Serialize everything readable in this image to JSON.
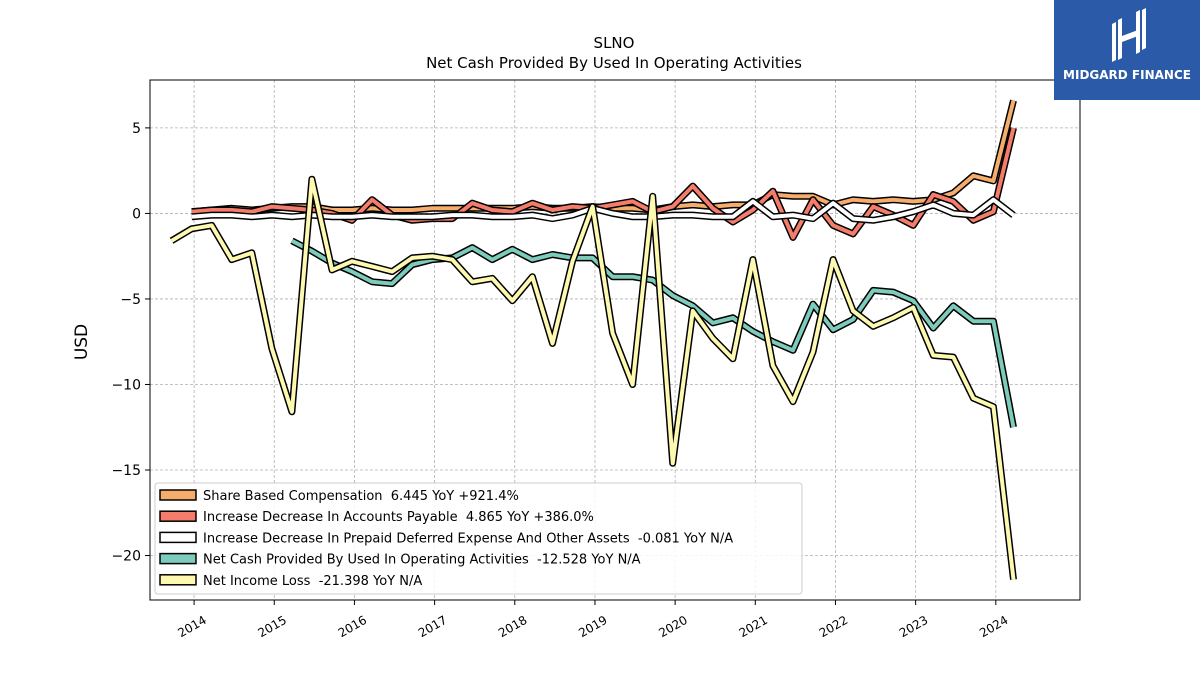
{
  "brand": {
    "name": "MIDGARD FINANCE",
    "bg_color": "#2b5aa8"
  },
  "chart_data": {
    "type": "line",
    "title": "SLNO",
    "subtitle": "Net Cash Provided By Used In Operating Activities",
    "xlabel": "",
    "ylabel": "USD",
    "xlim": [
      2013.45,
      2025.05
    ],
    "ylim": [
      -22.6,
      7.8
    ],
    "xticks": [
      "2014",
      "2015",
      "2016",
      "2017",
      "2018",
      "2019",
      "2020",
      "2021",
      "2022",
      "2023",
      "2024"
    ],
    "yticks": [
      5,
      0,
      -5,
      -10,
      -15,
      -20
    ],
    "ytick_labels": [
      "5",
      "0",
      "−5",
      "−10",
      "−15",
      "−20"
    ],
    "grid": true,
    "legend_position": "lower-left",
    "series": [
      {
        "name": "Share Based Compensation",
        "legend": "Share Based Compensation  6.445 YoY +921.4%",
        "color": "#f6ac6b",
        "points": [
          [
            2013.97,
            0.1
          ],
          [
            2014.22,
            0.2
          ],
          [
            2014.47,
            0.3
          ],
          [
            2014.72,
            0.2
          ],
          [
            2014.97,
            0.3
          ],
          [
            2015.22,
            0.4
          ],
          [
            2015.47,
            0.4
          ],
          [
            2015.72,
            0.2
          ],
          [
            2015.97,
            0.2
          ],
          [
            2016.22,
            0.3
          ],
          [
            2016.47,
            0.2
          ],
          [
            2016.72,
            0.2
          ],
          [
            2016.97,
            0.3
          ],
          [
            2017.22,
            0.3
          ],
          [
            2017.47,
            0.3
          ],
          [
            2017.72,
            0.3
          ],
          [
            2017.97,
            0.3
          ],
          [
            2018.22,
            0.4
          ],
          [
            2018.47,
            0.3
          ],
          [
            2018.72,
            0.3
          ],
          [
            2018.97,
            0.4
          ],
          [
            2019.22,
            0.3
          ],
          [
            2019.47,
            0.3
          ],
          [
            2019.72,
            0.2
          ],
          [
            2019.97,
            0.4
          ],
          [
            2020.22,
            0.5
          ],
          [
            2020.47,
            0.4
          ],
          [
            2020.72,
            0.5
          ],
          [
            2020.97,
            0.5
          ],
          [
            2021.22,
            1.1
          ],
          [
            2021.47,
            1.0
          ],
          [
            2021.72,
            1.0
          ],
          [
            2021.97,
            0.5
          ],
          [
            2022.22,
            0.8
          ],
          [
            2022.47,
            0.7
          ],
          [
            2022.72,
            0.8
          ],
          [
            2022.97,
            0.7
          ],
          [
            2023.22,
            0.8
          ],
          [
            2023.47,
            1.2
          ],
          [
            2023.72,
            2.2
          ],
          [
            2023.97,
            1.9
          ],
          [
            2024.22,
            6.6
          ]
        ]
      },
      {
        "name": "Increase Decrease In Accounts Payable",
        "legend": "Increase Decrease In Accounts Payable  4.865 YoY +386.0%",
        "color": "#f47c6b",
        "points": [
          [
            2013.97,
            0.1
          ],
          [
            2014.22,
            0.2
          ],
          [
            2014.47,
            0.2
          ],
          [
            2014.72,
            0.1
          ],
          [
            2014.97,
            0.4
          ],
          [
            2015.22,
            0.3
          ],
          [
            2015.47,
            0.2
          ],
          [
            2015.72,
            0.0
          ],
          [
            2015.97,
            -0.4
          ],
          [
            2016.22,
            0.8
          ],
          [
            2016.47,
            -0.1
          ],
          [
            2016.72,
            -0.4
          ],
          [
            2016.97,
            -0.3
          ],
          [
            2017.22,
            -0.3
          ],
          [
            2017.47,
            0.6
          ],
          [
            2017.72,
            0.2
          ],
          [
            2017.97,
            0.1
          ],
          [
            2018.22,
            0.6
          ],
          [
            2018.47,
            0.2
          ],
          [
            2018.72,
            0.4
          ],
          [
            2018.97,
            0.3
          ],
          [
            2019.22,
            0.5
          ],
          [
            2019.47,
            0.7
          ],
          [
            2019.72,
            0.1
          ],
          [
            2019.97,
            0.4
          ],
          [
            2020.22,
            1.6
          ],
          [
            2020.47,
            0.3
          ],
          [
            2020.72,
            -0.5
          ],
          [
            2020.97,
            0.2
          ],
          [
            2021.22,
            1.3
          ],
          [
            2021.47,
            -1.4
          ],
          [
            2021.72,
            0.8
          ],
          [
            2021.97,
            -0.7
          ],
          [
            2022.22,
            -1.2
          ],
          [
            2022.47,
            0.4
          ],
          [
            2022.72,
            -0.1
          ],
          [
            2022.97,
            -0.7
          ],
          [
            2023.22,
            1.1
          ],
          [
            2023.47,
            0.7
          ],
          [
            2023.72,
            -0.4
          ],
          [
            2023.97,
            0.1
          ],
          [
            2024.22,
            5.0
          ]
        ]
      },
      {
        "name": "Increase Decrease In Prepaid Deferred Expense And Other Assets",
        "legend": "Increase Decrease In Prepaid Deferred Expense And Other Assets  -0.081 YoY N/A",
        "color": "#ffffff",
        "points": [
          [
            2013.97,
            -0.2
          ],
          [
            2014.22,
            -0.1
          ],
          [
            2014.47,
            -0.1
          ],
          [
            2014.72,
            -0.2
          ],
          [
            2014.97,
            -0.1
          ],
          [
            2015.22,
            -0.2
          ],
          [
            2015.47,
            -0.1
          ],
          [
            2015.72,
            -0.2
          ],
          [
            2015.97,
            -0.2
          ],
          [
            2016.22,
            -0.1
          ],
          [
            2016.47,
            -0.2
          ],
          [
            2016.72,
            -0.2
          ],
          [
            2016.97,
            -0.2
          ],
          [
            2017.22,
            -0.1
          ],
          [
            2017.47,
            -0.1
          ],
          [
            2017.72,
            -0.2
          ],
          [
            2017.97,
            -0.2
          ],
          [
            2018.22,
            -0.1
          ],
          [
            2018.47,
            -0.3
          ],
          [
            2018.72,
            -0.1
          ],
          [
            2018.97,
            0.3
          ],
          [
            2019.22,
            0.0
          ],
          [
            2019.47,
            -0.2
          ],
          [
            2019.72,
            -0.2
          ],
          [
            2019.97,
            -0.1
          ],
          [
            2020.22,
            -0.1
          ],
          [
            2020.47,
            -0.2
          ],
          [
            2020.72,
            -0.2
          ],
          [
            2020.97,
            0.7
          ],
          [
            2021.22,
            -0.2
          ],
          [
            2021.47,
            -0.1
          ],
          [
            2021.72,
            -0.3
          ],
          [
            2021.97,
            0.6
          ],
          [
            2022.22,
            -0.3
          ],
          [
            2022.47,
            -0.4
          ],
          [
            2022.72,
            -0.2
          ],
          [
            2022.97,
            0.1
          ],
          [
            2023.22,
            0.5
          ],
          [
            2023.47,
            0.0
          ],
          [
            2023.72,
            -0.1
          ],
          [
            2023.97,
            0.8
          ],
          [
            2024.22,
            -0.1
          ]
        ]
      },
      {
        "name": "Net Cash Provided By Used In Operating Activities",
        "legend": "Net Cash Provided By Used In Operating Activities  -12.528 YoY N/A",
        "color": "#7dcbbb",
        "points": [
          [
            2015.22,
            -1.6
          ],
          [
            2015.47,
            -2.2
          ],
          [
            2015.72,
            -2.9
          ],
          [
            2015.97,
            -3.4
          ],
          [
            2016.22,
            -4.0
          ],
          [
            2016.47,
            -4.1
          ],
          [
            2016.72,
            -3.0
          ],
          [
            2016.97,
            -2.7
          ],
          [
            2017.22,
            -2.6
          ],
          [
            2017.47,
            -2.0
          ],
          [
            2017.72,
            -2.7
          ],
          [
            2017.97,
            -2.1
          ],
          [
            2018.22,
            -2.7
          ],
          [
            2018.47,
            -2.4
          ],
          [
            2018.72,
            -2.6
          ],
          [
            2018.97,
            -2.6
          ],
          [
            2019.22,
            -3.7
          ],
          [
            2019.47,
            -3.7
          ],
          [
            2019.72,
            -3.9
          ],
          [
            2019.97,
            -4.8
          ],
          [
            2020.22,
            -5.4
          ],
          [
            2020.47,
            -6.4
          ],
          [
            2020.72,
            -6.1
          ],
          [
            2020.97,
            -6.9
          ],
          [
            2021.22,
            -7.5
          ],
          [
            2021.47,
            -8.0
          ],
          [
            2021.72,
            -5.3
          ],
          [
            2021.97,
            -6.8
          ],
          [
            2022.22,
            -6.2
          ],
          [
            2022.47,
            -4.5
          ],
          [
            2022.72,
            -4.6
          ],
          [
            2022.97,
            -5.1
          ],
          [
            2023.22,
            -6.7
          ],
          [
            2023.47,
            -5.4
          ],
          [
            2023.72,
            -6.3
          ],
          [
            2023.97,
            -6.3
          ],
          [
            2024.22,
            -12.5
          ]
        ]
      },
      {
        "name": "Net Income Loss",
        "legend": "Net Income Loss  -21.398 YoY N/A",
        "color": "#fef9b0",
        "points": [
          [
            2013.72,
            -1.6
          ],
          [
            2013.97,
            -0.9
          ],
          [
            2014.22,
            -0.7
          ],
          [
            2014.47,
            -2.7
          ],
          [
            2014.72,
            -2.3
          ],
          [
            2014.97,
            -7.9
          ],
          [
            2015.22,
            -11.6
          ],
          [
            2015.47,
            2.0
          ],
          [
            2015.72,
            -3.3
          ],
          [
            2015.97,
            -2.8
          ],
          [
            2016.22,
            -3.1
          ],
          [
            2016.47,
            -3.4
          ],
          [
            2016.72,
            -2.6
          ],
          [
            2016.97,
            -2.5
          ],
          [
            2017.22,
            -2.7
          ],
          [
            2017.47,
            -4.0
          ],
          [
            2017.72,
            -3.8
          ],
          [
            2017.97,
            -5.1
          ],
          [
            2018.22,
            -3.7
          ],
          [
            2018.47,
            -7.6
          ],
          [
            2018.72,
            -2.8
          ],
          [
            2018.97,
            0.4
          ],
          [
            2019.22,
            -7.0
          ],
          [
            2019.47,
            -10.0
          ],
          [
            2019.72,
            1.0
          ],
          [
            2019.97,
            -14.6
          ],
          [
            2020.22,
            -5.7
          ],
          [
            2020.47,
            -7.3
          ],
          [
            2020.72,
            -8.5
          ],
          [
            2020.97,
            -2.7
          ],
          [
            2021.22,
            -8.9
          ],
          [
            2021.47,
            -11.0
          ],
          [
            2021.72,
            -8.1
          ],
          [
            2021.97,
            -2.7
          ],
          [
            2022.22,
            -5.7
          ],
          [
            2022.47,
            -6.6
          ],
          [
            2022.72,
            -6.1
          ],
          [
            2022.97,
            -5.5
          ],
          [
            2023.22,
            -8.3
          ],
          [
            2023.47,
            -8.4
          ],
          [
            2023.72,
            -10.8
          ],
          [
            2023.97,
            -11.3
          ],
          [
            2024.22,
            -21.4
          ]
        ]
      }
    ]
  }
}
